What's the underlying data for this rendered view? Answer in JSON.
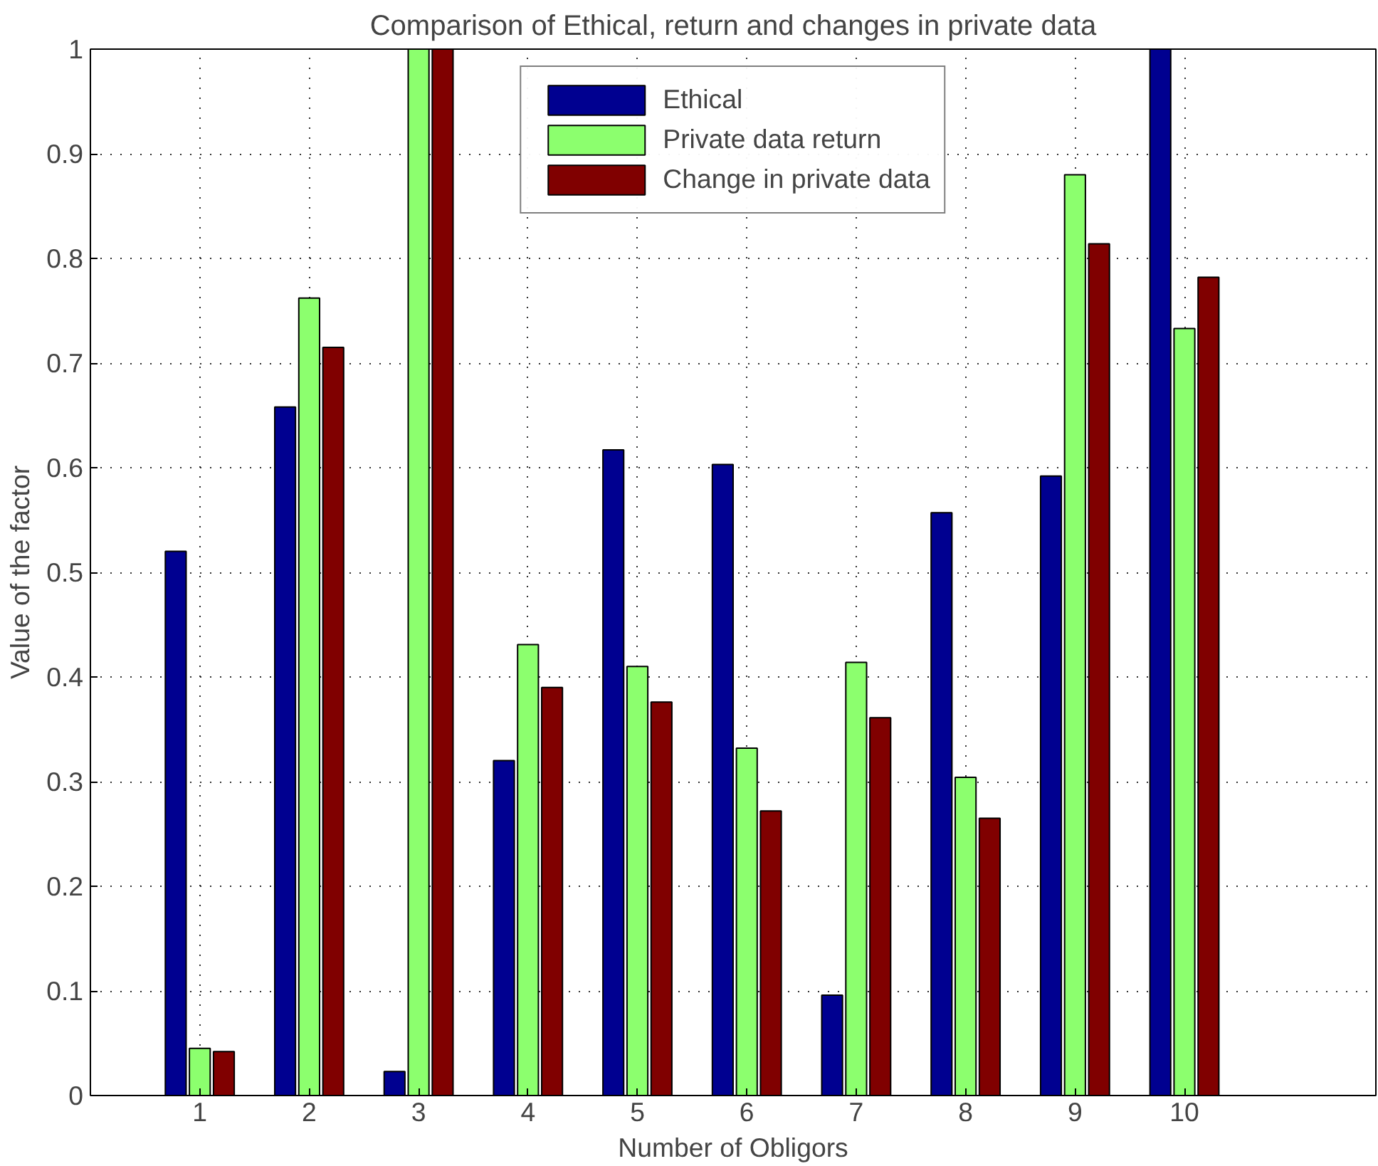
{
  "chart_data": {
    "type": "bar",
    "title": "Comparison of Ethical, return and changes in private data",
    "xlabel": "Number of Obligors",
    "ylabel": "Value of the factor",
    "x": [
      1,
      2,
      3,
      4,
      5,
      6,
      7,
      8,
      9,
      10
    ],
    "series": [
      {
        "name": "Ethical",
        "color": "#000090",
        "values": [
          0.52,
          0.658,
          0.023,
          0.32,
          0.617,
          0.603,
          0.096,
          0.557,
          0.592,
          1.0
        ]
      },
      {
        "name": "Private data return",
        "color": "#8cff6e",
        "values": [
          0.045,
          0.762,
          1.0,
          0.431,
          0.41,
          0.332,
          0.414,
          0.304,
          0.88,
          0.733
        ]
      },
      {
        "name": "Change in private data",
        "color": "#800000",
        "values": [
          0.042,
          0.715,
          1.0,
          0.39,
          0.376,
          0.272,
          0.361,
          0.265,
          0.814,
          0.782
        ]
      }
    ],
    "xlim": [
      0,
      11.75
    ],
    "xticks": [
      1,
      2,
      3,
      4,
      5,
      6,
      7,
      8,
      9,
      10
    ],
    "ylim": [
      0,
      1
    ],
    "yticks": [
      0,
      0.1,
      0.2,
      0.3,
      0.4,
      0.5,
      0.6,
      0.7,
      0.8,
      0.9,
      1
    ],
    "grid": true,
    "legend": "top"
  }
}
